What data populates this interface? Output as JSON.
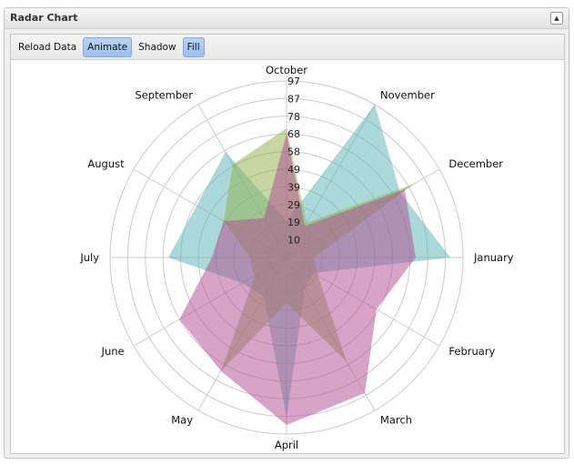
{
  "panel": {
    "title": "Radar Chart",
    "collapse_icon": "triangle-up-icon"
  },
  "toolbar": [
    {
      "label": "Reload Data",
      "pressed": false
    },
    {
      "label": "Animate",
      "pressed": true
    },
    {
      "label": "Shadow",
      "pressed": false
    },
    {
      "label": "Fill",
      "pressed": true
    }
  ],
  "chart_data": {
    "type": "radar",
    "categories": [
      "October",
      "November",
      "December",
      "January",
      "February",
      "March",
      "April",
      "May",
      "June",
      "July",
      "August",
      "September"
    ],
    "radial_ticks": [
      "10",
      "19",
      "29",
      "39",
      "49",
      "58",
      "68",
      "78",
      "87",
      "97"
    ],
    "rmax": 97,
    "grid": true,
    "fill": true,
    "series": [
      {
        "color": "#5ab1b5",
        "values": [
          20,
          97,
          72,
          90,
          17,
          20,
          88,
          25,
          28,
          65,
          57,
          67
        ]
      },
      {
        "color": "#8fb04a",
        "values": [
          71,
          22,
          81,
          15,
          20,
          66,
          25,
          72,
          20,
          20,
          40,
          59
        ]
      },
      {
        "color": "#b0478f",
        "values": [
          68,
          20,
          75,
          71,
          57,
          86,
          92,
          72,
          68,
          41,
          40,
          25
        ]
      }
    ]
  }
}
